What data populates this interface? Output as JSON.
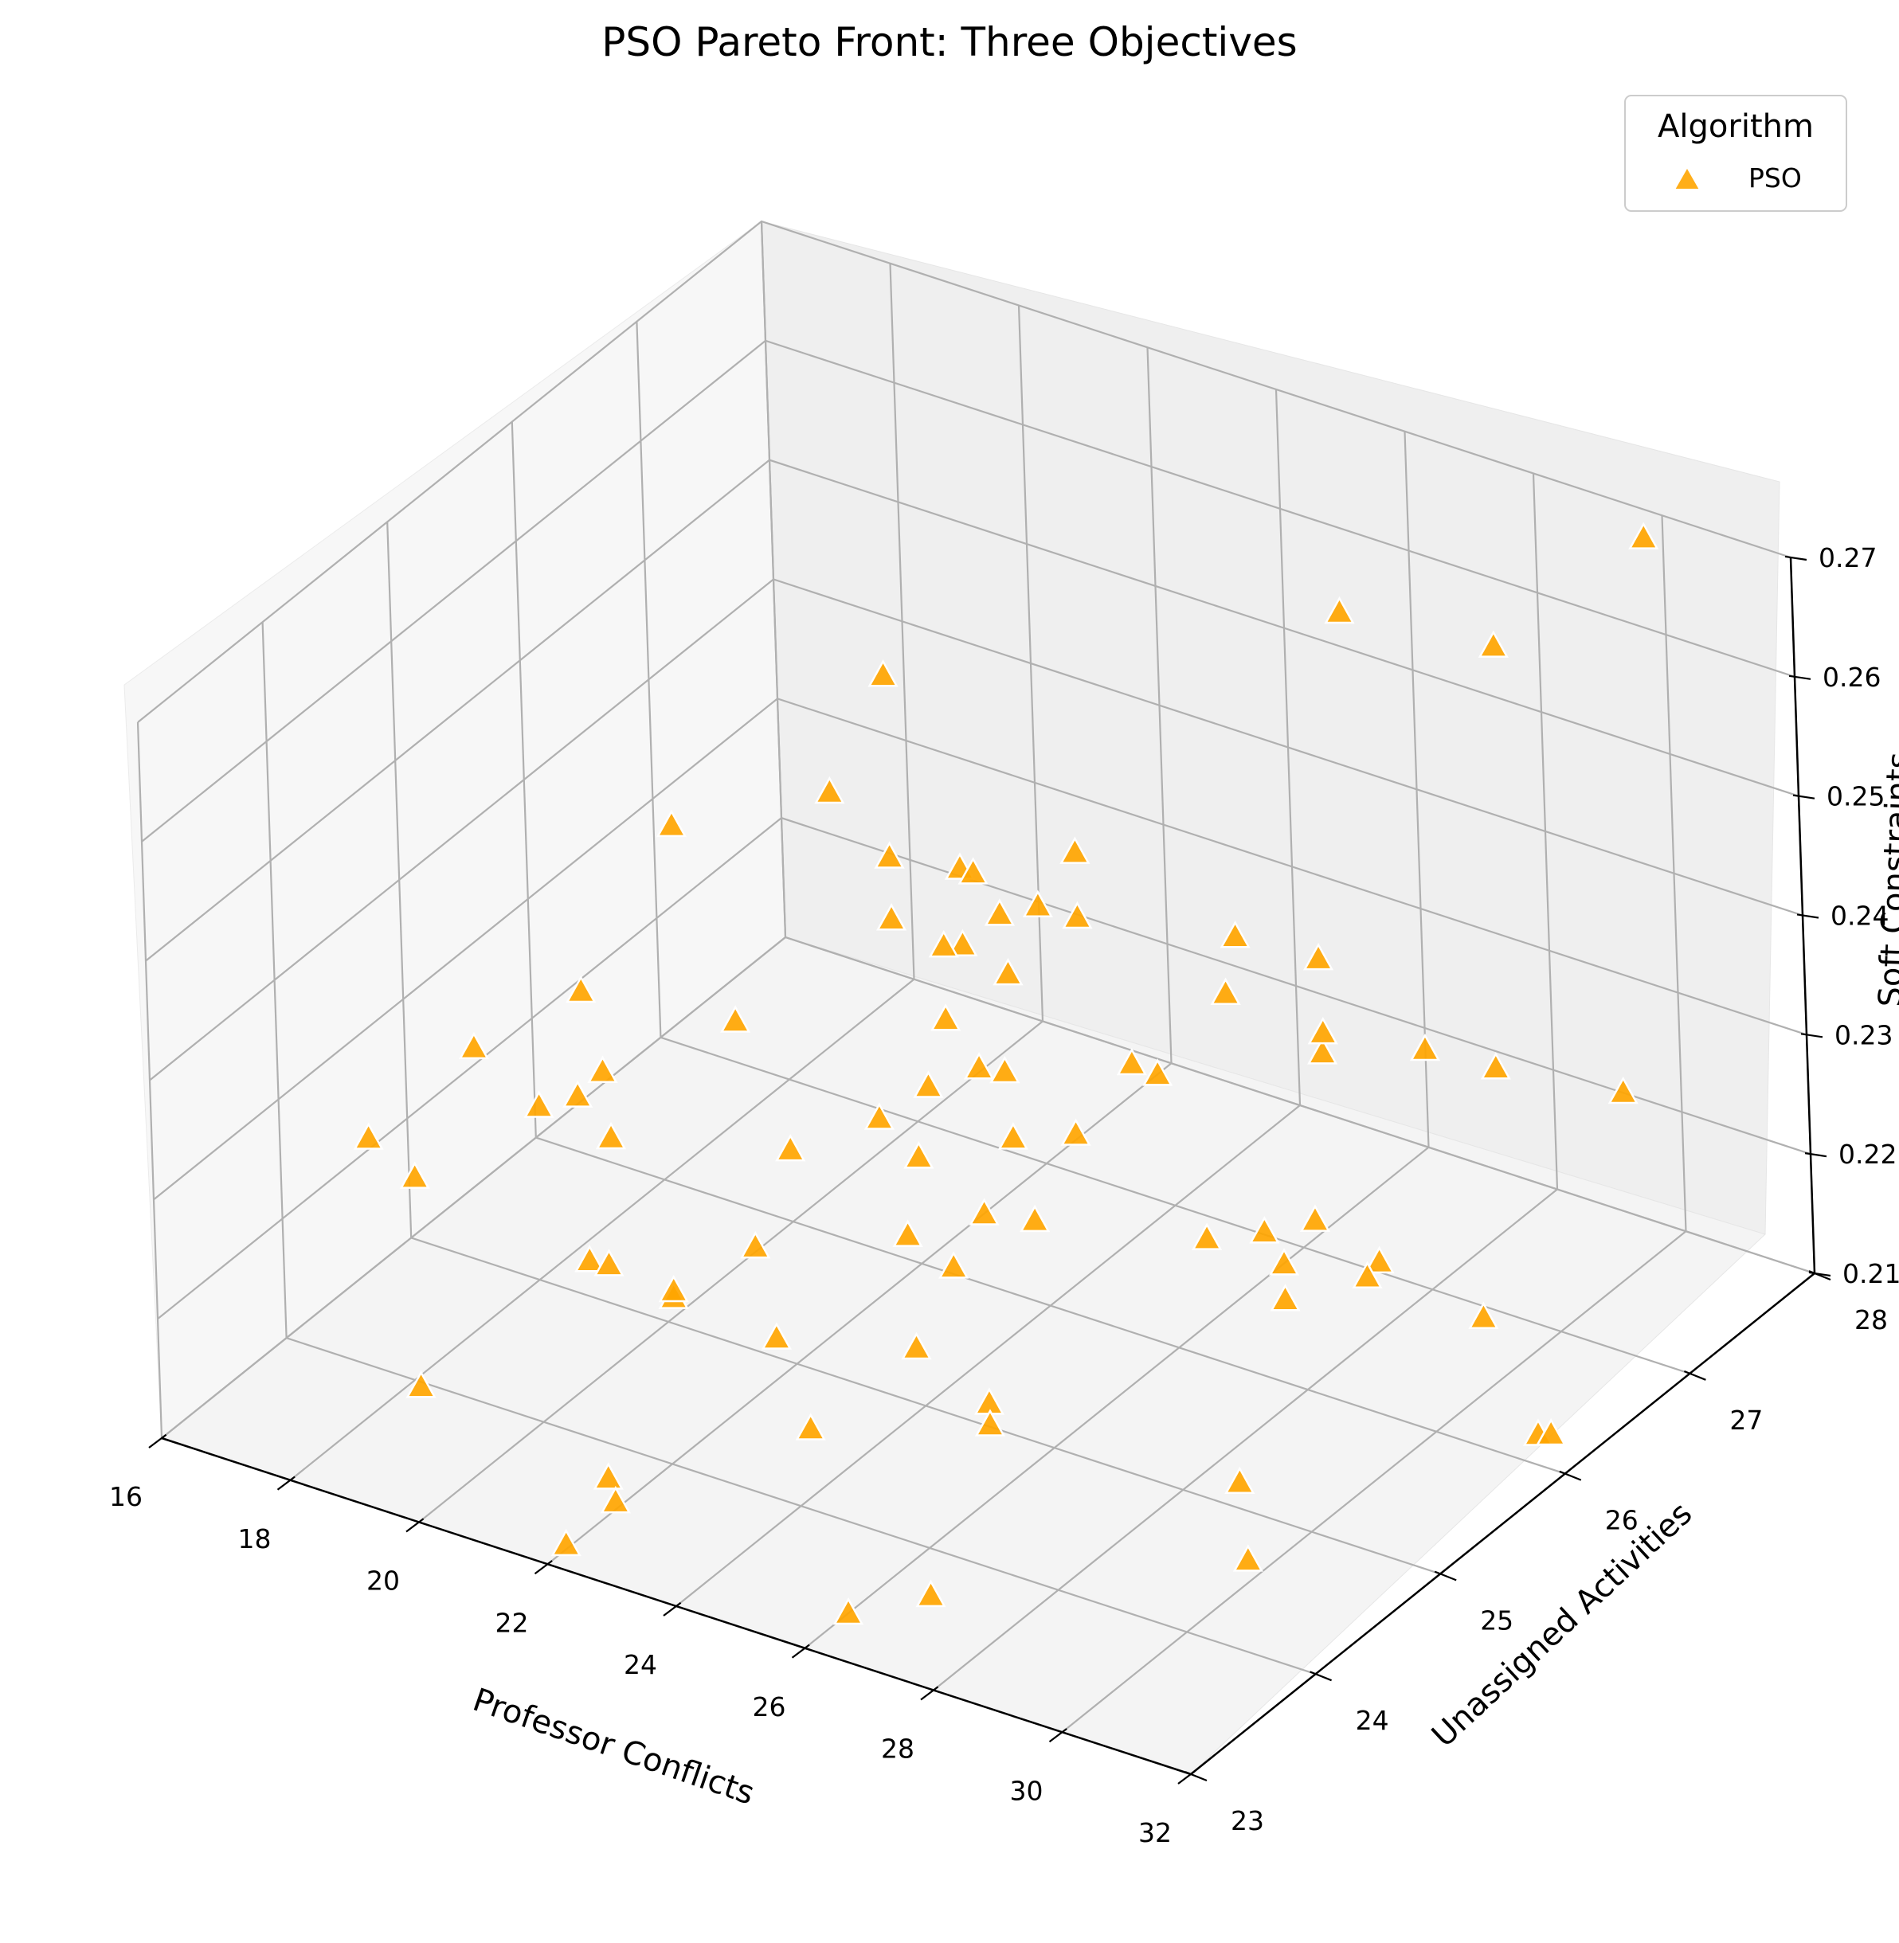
{
  "chart_data": {
    "type": "scatter",
    "projection": "3d",
    "title": "PSO Pareto Front: Three Objectives",
    "xlabel": "Professor Conflicts",
    "ylabel": "Unassigned Activities",
    "zlabel": "Soft Constraints",
    "xlim": [
      16,
      32
    ],
    "ylim": [
      23,
      28
    ],
    "zlim": [
      0.21,
      0.27
    ],
    "x_ticks": [
      "16",
      "18",
      "20",
      "22",
      "24",
      "26",
      "28",
      "30",
      "32"
    ],
    "y_ticks": [
      "23",
      "24",
      "25",
      "26",
      "27",
      "28"
    ],
    "z_ticks": [
      "0.21",
      "0.22",
      "0.23",
      "0.24",
      "0.25",
      "0.26",
      "0.27"
    ],
    "grid": true,
    "legend": {
      "title": "Algorithm",
      "position": "top-right"
    },
    "series": [
      {
        "name": "PSO",
        "marker": "triangle",
        "color": "#FFA500",
        "points": [
          [
            24.8,
            25.1,
            0.209
          ],
          [
            22.9,
            23.1,
            0.216
          ],
          [
            20.6,
            25.4,
            0.214
          ],
          [
            21.0,
            26.5,
            0.213
          ],
          [
            19.5,
            23.3,
            0.218
          ],
          [
            23.3,
            26.1,
            0.222
          ],
          [
            24.0,
            25.9,
            0.218
          ],
          [
            20.3,
            24.9,
            0.214
          ],
          [
            23.1,
            24.3,
            0.22
          ],
          [
            20.9,
            24.6,
            0.217
          ],
          [
            21.0,
            25.5,
            0.222
          ],
          [
            27.4,
            26.5,
            0.233
          ],
          [
            24.5,
            27.2,
            0.227
          ],
          [
            29.7,
            24.6,
            0.217
          ],
          [
            27.0,
            23.5,
            0.212
          ],
          [
            25.4,
            23.4,
            0.224
          ],
          [
            26.3,
            25.1,
            0.236
          ],
          [
            19.9,
            24.6,
            0.218
          ],
          [
            17.9,
            24.1,
            0.226
          ],
          [
            25.0,
            25.0,
            0.212
          ],
          [
            26.3,
            23.8,
            0.229
          ],
          [
            18.2,
            23.6,
            0.234
          ],
          [
            19.8,
            24.5,
            0.219
          ],
          [
            22.8,
            25.5,
            0.218
          ],
          [
            23.0,
            23.0,
            0.219
          ],
          [
            31.8,
            26.0,
            0.213
          ],
          [
            22.9,
            25.8,
            0.213
          ],
          [
            28.7,
            25.5,
            0.223
          ],
          [
            22.2,
            26.3,
            0.241
          ],
          [
            31.2,
            23.9,
            0.219
          ],
          [
            27.5,
            27.8,
            0.221
          ],
          [
            27.6,
            26.3,
            0.221
          ],
          [
            27.2,
            26.1,
            0.221
          ],
          [
            22.1,
            23.1,
            0.211
          ],
          [
            20.8,
            27.9,
            0.221
          ],
          [
            24.6,
            26.4,
            0.228
          ],
          [
            26.8,
            27.6,
            0.223
          ],
          [
            20.9,
            26.8,
            0.228
          ],
          [
            32.0,
            25.8,
            0.215
          ],
          [
            25.2,
            26.3,
            0.229
          ],
          [
            28.7,
            25.5,
            0.226
          ],
          [
            23.0,
            25.6,
            0.23
          ],
          [
            20.2,
            26.6,
            0.214
          ],
          [
            27.5,
            25.5,
            0.226
          ],
          [
            29.8,
            25.6,
            0.226
          ],
          [
            19.8,
            25.7,
            0.229
          ],
          [
            30.8,
            26.0,
            0.221
          ],
          [
            22.8,
            26.3,
            0.225
          ],
          [
            22.8,
            26.1,
            0.227
          ],
          [
            19.2,
            24.8,
            0.238
          ],
          [
            21.3,
            26.2,
            0.236
          ],
          [
            21.6,
            26.6,
            0.231
          ],
          [
            20.2,
            24.5,
            0.23
          ],
          [
            22.6,
            26.4,
            0.237
          ],
          [
            24.6,
            27.9,
            0.218
          ],
          [
            21.4,
            27.6,
            0.23
          ],
          [
            22.5,
            26.5,
            0.231
          ],
          [
            22.4,
            26.8,
            0.234
          ],
          [
            21.4,
            26.8,
            0.235
          ],
          [
            22.1,
            26.2,
            0.229
          ],
          [
            21.1,
            26.3,
            0.24
          ],
          [
            19.1,
            25.6,
            0.245
          ],
          [
            21.4,
            25.7,
            0.251
          ],
          [
            21.9,
            25.9,
            0.26
          ],
          [
            19.7,
            24.7,
            0.233
          ],
          [
            19.3,
            23.9,
            0.241
          ],
          [
            21.5,
            23.3,
            0.245
          ],
          [
            20.1,
            24.3,
            0.235
          ],
          [
            30.1,
            27.8,
            0.27
          ],
          [
            30.1,
            26.6,
            0.271
          ],
          [
            28.1,
            26.4,
            0.272
          ],
          [
            29.6,
            25.4,
            0.254
          ],
          [
            27.7,
            25.7,
            0.25
          ],
          [
            31.1,
            27.0,
            0.232
          ],
          [
            30.4,
            25.4,
            0.23
          ],
          [
            26.5,
            23.1,
            0.213
          ],
          [
            22.0,
            26.5,
            0.21
          ]
        ]
      }
    ]
  }
}
